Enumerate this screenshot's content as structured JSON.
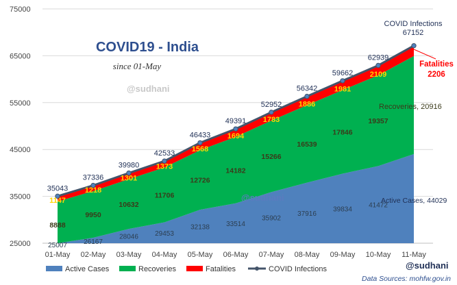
{
  "chart_data": {
    "type": "area",
    "title": "COVID19 - India",
    "subtitle": "since 01-May",
    "watermark": "@sudhani",
    "source": "Data Sources: mohfw.gov.in",
    "categories": [
      "01-May",
      "02-May",
      "03-May",
      "04-May",
      "05-May",
      "06-May",
      "07-May",
      "08-May",
      "09-May",
      "10-May",
      "11-May"
    ],
    "ylim": [
      25000,
      75000
    ],
    "yticks": [
      "25000",
      "35000",
      "45000",
      "55000",
      "65000",
      "75000"
    ],
    "series": [
      {
        "name": "Active Cases",
        "kind": "area",
        "color": "#4f81bd",
        "values": [
          25007,
          26167,
          28046,
          29453,
          32138,
          33514,
          35902,
          37916,
          39834,
          41472,
          44029
        ]
      },
      {
        "name": "Recoveries",
        "kind": "area",
        "color": "#00b050",
        "values": [
          8888,
          9950,
          10632,
          11706,
          12726,
          14182,
          15266,
          16539,
          17846,
          19357,
          20916
        ]
      },
      {
        "name": "Fatalities",
        "kind": "area",
        "color": "#ff0000",
        "values": [
          1147,
          1218,
          1301,
          1373,
          1568,
          1694,
          1783,
          1886,
          1981,
          2109,
          2206
        ]
      },
      {
        "name": "COVID Infections",
        "kind": "line",
        "color": "#44546a",
        "values": [
          35043,
          37336,
          39980,
          42533,
          46433,
          49391,
          52952,
          56342,
          59662,
          62939,
          67152
        ]
      }
    ],
    "end_labels": {
      "active": "Active Cases, 44029",
      "recoveries": "Recoveries, 20916",
      "fatalities_name": "Fatalities",
      "fatalities_value": "2206",
      "infections_name": "COVID Infections",
      "infections_value": "67152"
    },
    "colors": {
      "title": "#2e4f8f",
      "fatal_label": "#ff0000",
      "rec_label": "#3a3a1a",
      "source": "#2e4f8f"
    }
  }
}
